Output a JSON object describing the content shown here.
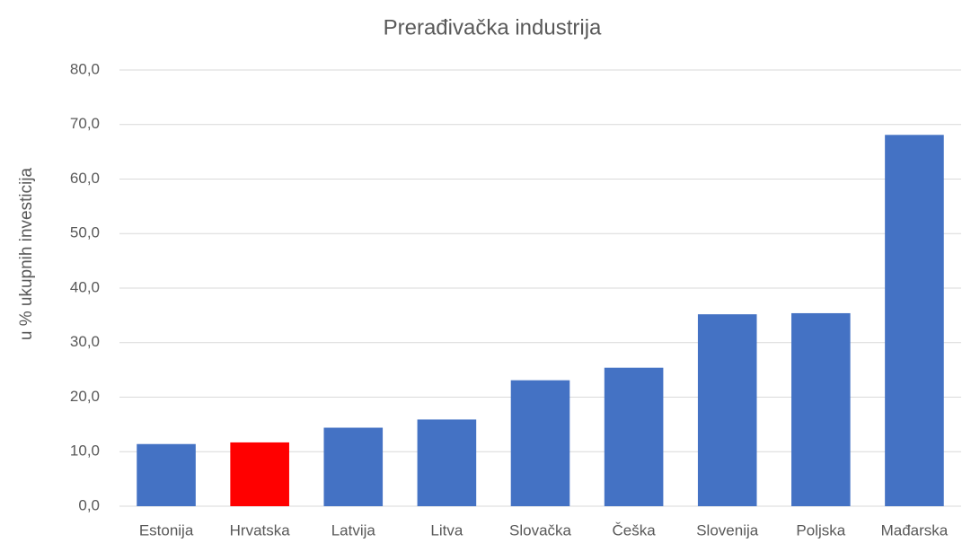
{
  "chart_data": {
    "type": "bar",
    "title": "Prerađivačka industrija",
    "y_label": "u % ukupnih investicija",
    "categories": [
      "Estonija",
      "Hrvatska",
      "Latvija",
      "Litva",
      "Slovačka",
      "Češka",
      "Slovenija",
      "Poljska",
      "Mađarska"
    ],
    "values": [
      11.4,
      11.7,
      14.4,
      15.9,
      23.1,
      25.4,
      35.2,
      35.4,
      68.1
    ],
    "colors": [
      "#4472c4",
      "#ff0000",
      "#4472c4",
      "#4472c4",
      "#4472c4",
      "#4472c4",
      "#4472c4",
      "#4472c4",
      "#4472c4"
    ],
    "ylim": [
      0,
      80
    ],
    "yticks": [
      {
        "value": 0,
        "label": "0,0"
      },
      {
        "value": 10,
        "label": "10,0"
      },
      {
        "value": 20,
        "label": "20,0"
      },
      {
        "value": 30,
        "label": "30,0"
      },
      {
        "value": 40,
        "label": "40,0"
      },
      {
        "value": 50,
        "label": "50,0"
      },
      {
        "value": 60,
        "label": "60,0"
      },
      {
        "value": 70,
        "label": "70,0"
      },
      {
        "value": 80,
        "label": "80,0"
      }
    ],
    "grid": true
  }
}
